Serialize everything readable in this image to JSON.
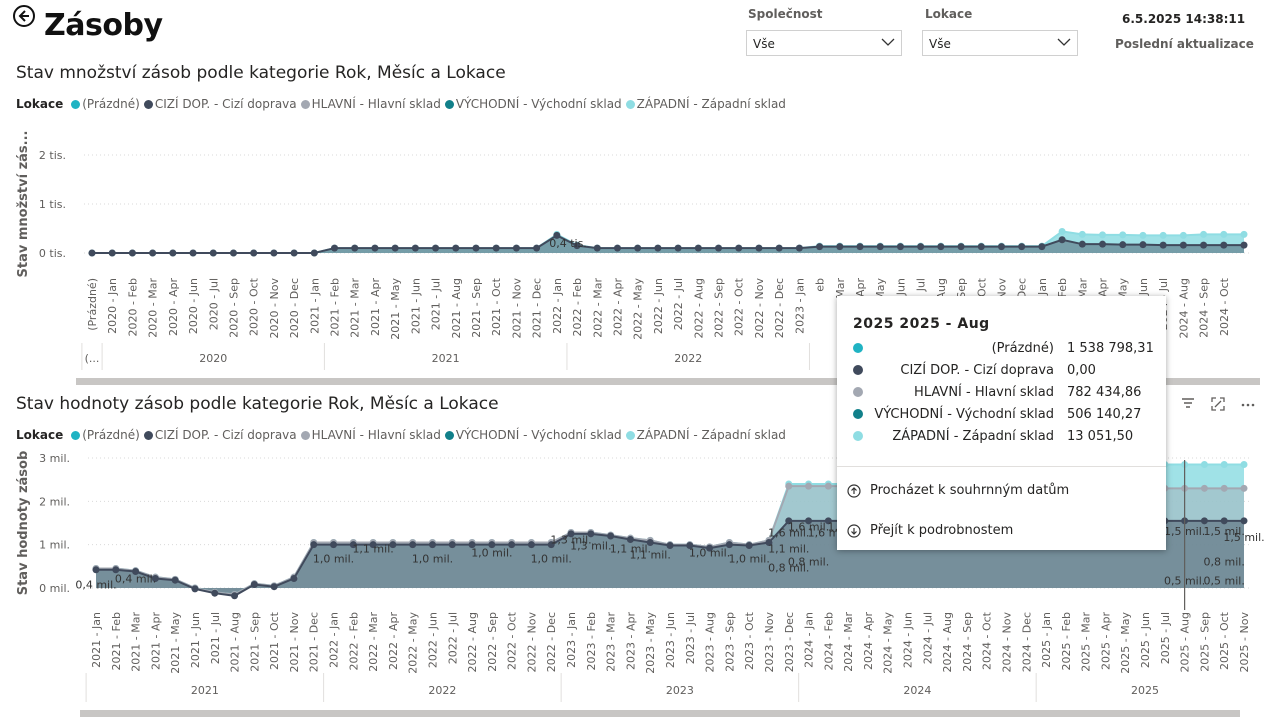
{
  "page": {
    "title": "Zásoby"
  },
  "slicers": [
    {
      "label": "Společnost",
      "value": "Vše"
    },
    {
      "label": "Lokace",
      "value": "Vše"
    }
  ],
  "refresh": {
    "datetime": "6.5.2025 14:38:11",
    "label": "Poslední aktualizace"
  },
  "colors": {
    "prazdne": "#20b3c3",
    "cizi": "#404a5c",
    "hlavni": "#a3a8b2",
    "vychodni": "#11808a",
    "zapadni": "#8fdde3"
  },
  "legend": {
    "title": "Lokace",
    "items": [
      {
        "label": "(Prázdné)",
        "color": "#20b3c3"
      },
      {
        "label": "CIZÍ DOP. - Cizí doprava",
        "color": "#404a5c"
      },
      {
        "label": "HLAVNÍ - Hlavní sklad",
        "color": "#a3a8b2"
      },
      {
        "label": "VÝCHODNÍ - Východní sklad",
        "color": "#11808a"
      },
      {
        "label": "ZÁPADNÍ - Západní sklad",
        "color": "#8fdde3"
      }
    ]
  },
  "chart_data": [
    {
      "type": "area",
      "title": "Stav množství zásob podle kategorie Rok, Měsíc a Lokace",
      "ylabel": "Stav množství zás...",
      "yticks": [
        "0 tis.",
        "1 tis.",
        "2 tis."
      ],
      "ylim": [
        0,
        2000
      ],
      "grid": true,
      "legend_position": "top-left",
      "x": [
        "(Prázdné)",
        "2020 - Jan",
        "2020 - Feb",
        "2020 - Mar",
        "2020 - Apr",
        "2020 - May",
        "2020 - Jun",
        "2020 - Jul",
        "2020 - Sep",
        "2020 - Oct",
        "2020 - Nov",
        "2020 - Dec",
        "2021 - Jan",
        "2021 - Feb",
        "2021 - Mar",
        "2021 - Apr",
        "2021 - May",
        "2021 - Jun",
        "2021 - Jul",
        "2021 - Aug",
        "2021 - Sep",
        "2021 - Oct",
        "2021 - Nov",
        "2021 - Dec",
        "2022 - Jan",
        "2022 - Feb",
        "2022 - Mar",
        "2022 - Apr",
        "2022 - May",
        "2022 - Jun",
        "2022 - Jul",
        "2022 - Aug",
        "2022 - Sep",
        "2022 - Oct",
        "2022 - Nov",
        "2022 - Dec",
        "2023 - Jan",
        "2023 - Feb",
        "2023 - Mar",
        "2023 - Apr",
        "2023 - May",
        "2023 - Jun",
        "2023 - Jul",
        "2023 - Aug",
        "2023 - Sep",
        "2023 - Oct",
        "2023 - Nov",
        "2023 - Dec",
        "2024 - Jan",
        "2024 - Feb",
        "2024 - Mar",
        "2024 - Apr",
        "2024 - May",
        "2024 - Jun",
        "2024 - Jul",
        "2024 - Aug",
        "2024 - Sep",
        "2024 - Oct"
      ],
      "x_visible_labels": [
        "(Prázdné)",
        "2020 - Jan",
        "2020 - Feb",
        "2020 - Mar",
        "2020 - Apr",
        "2020 - Jun",
        "2020 - Jul",
        "2020 - Sep",
        "2020 - Oct",
        "2020 - Nov",
        "2020 - Dec",
        "2021 - Jan",
        "2021 - Feb",
        "2021 - Mar",
        "2021 - Apr",
        "2021 - May",
        "2021 - Jun",
        "2021 - Jul",
        "2021 - Aug",
        "2021 - Sep",
        "2021 - Oct",
        "2021 - Nov",
        "2021 - Dec",
        "2022 - Jan",
        "2022 - Feb",
        "2022 - Mar",
        "2022 - Apr",
        "2022 - May",
        "2022 - Jun",
        "2022 - Jul",
        "2022 - Aug",
        "2022 - Sep",
        "2022 - Oct",
        "2022 - Nov",
        "2022 - Dec",
        "2023 - Jan",
        "eb",
        "Mar",
        "Apr",
        "May",
        "Jun",
        "Jul",
        "Aug",
        "Sep",
        "Oct",
        "Nov",
        "Dec",
        "2024 - Jan",
        "2024 - Feb",
        "2024 - Mar",
        "2024 - Apr",
        "2024 - May",
        "2024 - Jun",
        "2024 - Jul",
        "2024 - Aug",
        "2024 - Sep",
        "2024 - Oct"
      ],
      "year_groups": [
        {
          "label": "(...",
          "count": 1
        },
        {
          "label": "2020",
          "count": 11
        },
        {
          "label": "2021",
          "count": 12
        },
        {
          "label": "2022",
          "count": 12
        },
        {
          "label": "",
          "count": 12
        },
        {
          "label": "",
          "count": 10
        }
      ],
      "series": [
        {
          "name": "ZÁPADNÍ - Západní sklad",
          "color": "#8fdde3",
          "values": [
            0,
            0,
            0,
            0,
            0,
            0,
            0,
            0,
            0,
            0,
            0,
            0,
            100,
            100,
            100,
            100,
            100,
            100,
            100,
            100,
            100,
            100,
            100,
            380,
            160,
            100,
            100,
            100,
            100,
            100,
            100,
            100,
            100,
            100,
            100,
            100,
            140,
            140,
            140,
            140,
            140,
            140,
            140,
            140,
            140,
            140,
            140,
            140,
            440,
            380,
            370,
            370,
            360,
            360,
            360,
            380,
            380,
            380
          ]
        },
        {
          "name": "CIZÍ DOP. - Cizí doprava",
          "color": "#404a5c",
          "values": [
            0,
            0,
            0,
            0,
            0,
            0,
            0,
            0,
            0,
            0,
            0,
            0,
            100,
            100,
            100,
            100,
            100,
            100,
            100,
            100,
            100,
            100,
            100,
            360,
            150,
            100,
            100,
            100,
            100,
            100,
            100,
            100,
            100,
            100,
            100,
            100,
            130,
            130,
            130,
            130,
            130,
            130,
            130,
            130,
            130,
            130,
            130,
            130,
            270,
            180,
            180,
            170,
            170,
            160,
            160,
            160,
            160,
            160
          ]
        }
      ],
      "annotations": [
        "0,4 tis."
      ]
    },
    {
      "type": "area",
      "title": "Stav hodnoty zásob podle kategorie Rok, Měsíc a Lokace",
      "ylabel": "Stav hodnoty zásob",
      "yticks": [
        "0 mil.",
        "1 mil.",
        "2 mil.",
        "3 mil."
      ],
      "ylim": [
        0,
        3
      ],
      "grid": true,
      "legend_position": "top-left",
      "x": [
        "2021 - Jan",
        "2021 - Feb",
        "2021 - Mar",
        "2021 - Apr",
        "2021 - May",
        "2021 - Jun",
        "2021 - Jul",
        "2021 - Aug",
        "2021 - Sep",
        "2021 - Oct",
        "2021 - Nov",
        "2021 - Dec",
        "2022 - Jan",
        "2022 - Feb",
        "2022 - Mar",
        "2022 - Apr",
        "2022 - May",
        "2022 - Jun",
        "2022 - Jul",
        "2022 - Aug",
        "2022 - Sep",
        "2022 - Oct",
        "2022 - Nov",
        "2022 - Dec",
        "2023 - Jan",
        "2023 - Feb",
        "2023 - Mar",
        "2023 - Apr",
        "2023 - May",
        "2023 - Jun",
        "2023 - Jul",
        "2023 - Aug",
        "2023 - Sep",
        "2023 - Oct",
        "2023 - Nov",
        "2023 - Dec",
        "2024 - Jan",
        "2024 - Feb",
        "2024 - Mar",
        "2024 - Apr",
        "2024 - May",
        "2024 - Jun",
        "2024 - Jul",
        "2024 - Aug",
        "2024 - Sep",
        "2024 - Oct",
        "2024 - Nov",
        "2024 - Dec",
        "2025 - Jan",
        "2025 - Feb",
        "2025 - Mar",
        "2025 - Apr",
        "2025 - May",
        "2025 - Jun",
        "2025 - Jul",
        "2025 - Aug",
        "2025 - Sep",
        "2025 - Oct",
        "2025 - Nov"
      ],
      "year_groups": [
        {
          "label": "2021",
          "count": 12
        },
        {
          "label": "2022",
          "count": 12
        },
        {
          "label": "2023",
          "count": 12
        },
        {
          "label": "2024",
          "count": 12
        },
        {
          "label": "2025",
          "count": 11
        }
      ],
      "series": [
        {
          "name": "ZÁPADNÍ - Západní sklad",
          "color": "#8fdde3",
          "values": [
            0.45,
            0.45,
            0.4,
            0.25,
            0.2,
            0.0,
            -0.1,
            -0.15,
            0.1,
            0.05,
            0.25,
            1.05,
            1.05,
            1.05,
            1.05,
            1.05,
            1.05,
            1.05,
            1.05,
            1.05,
            1.05,
            1.05,
            1.05,
            1.05,
            1.28,
            1.28,
            1.22,
            1.15,
            1.1,
            1.0,
            1.0,
            0.95,
            1.05,
            1.0,
            1.1,
            2.4,
            2.4,
            2.4,
            2.4,
            2.4,
            2.4,
            2.4,
            2.4,
            2.4,
            2.4,
            2.4,
            2.4,
            2.4,
            2.85,
            2.85,
            2.85,
            2.85,
            2.85,
            2.85,
            2.85,
            2.85,
            2.85,
            2.85,
            2.85
          ]
        },
        {
          "name": "HLAVNÍ - Hlavní sklad",
          "color": "#a3a8b2",
          "values": [
            0.45,
            0.45,
            0.4,
            0.25,
            0.2,
            0.0,
            -0.1,
            -0.15,
            0.1,
            0.05,
            0.25,
            1.05,
            1.05,
            1.05,
            1.05,
            1.05,
            1.05,
            1.05,
            1.05,
            1.05,
            1.05,
            1.05,
            1.05,
            1.05,
            1.28,
            1.28,
            1.22,
            1.15,
            1.1,
            1.0,
            1.0,
            0.95,
            1.05,
            1.0,
            1.1,
            2.35,
            2.35,
            2.35,
            2.35,
            2.35,
            2.35,
            2.35,
            2.35,
            2.35,
            2.35,
            2.35,
            2.35,
            2.35,
            2.3,
            2.3,
            2.3,
            2.3,
            2.3,
            2.3,
            2.3,
            2.3,
            2.3,
            2.3,
            2.3
          ]
        },
        {
          "name": "CIZÍ DOP. - Cizí doprava",
          "color": "#404a5c",
          "values": [
            0.42,
            0.42,
            0.38,
            0.22,
            0.18,
            -0.02,
            -0.12,
            -0.18,
            0.08,
            0.03,
            0.22,
            1.0,
            1.0,
            1.0,
            1.0,
            1.0,
            1.0,
            1.0,
            1.0,
            1.0,
            1.0,
            1.0,
            1.0,
            1.0,
            1.25,
            1.25,
            1.2,
            1.12,
            1.05,
            0.98,
            0.98,
            0.92,
            1.0,
            0.98,
            1.05,
            1.55,
            1.55,
            1.55,
            1.55,
            1.55,
            1.55,
            1.55,
            1.55,
            1.55,
            1.55,
            1.55,
            1.55,
            1.55,
            1.55,
            1.55,
            1.55,
            1.55,
            1.55,
            1.55,
            1.55,
            1.55,
            1.55,
            1.55,
            1.55
          ]
        }
      ],
      "data_labels": [
        {
          "text": "0,4 mil.",
          "i": 0
        },
        {
          "text": "0,4 mil.",
          "i": 2
        },
        {
          "text": "1,0 mil.",
          "i": 12
        },
        {
          "text": "1,1 mil.",
          "i": 14
        },
        {
          "text": "1,0 mil.",
          "i": 17
        },
        {
          "text": "1,0 mil.",
          "i": 20
        },
        {
          "text": "1,0 mil.",
          "i": 23
        },
        {
          "text": "1,3 mil.",
          "i": 24
        },
        {
          "text": "1,3 mil.",
          "i": 25
        },
        {
          "text": "1,1 mil.",
          "i": 27
        },
        {
          "text": "1,1 mil.",
          "i": 28
        },
        {
          "text": "1,0 mil.",
          "i": 31
        },
        {
          "text": "1,0 mil.",
          "i": 33
        },
        {
          "text": "1,1 mil.",
          "i": 35
        },
        {
          "text": "1,6 mil.",
          "i": 35
        },
        {
          "text": "1,6 mil.",
          "i": 36
        },
        {
          "text": "1,6 mil.",
          "i": 37
        },
        {
          "text": "1,6 mil.",
          "i": 38
        },
        {
          "text": "1,6 mil.",
          "i": 39
        },
        {
          "text": "1,6 mil.",
          "i": 40
        },
        {
          "text": "1,5 mil.",
          "i": 41
        },
        {
          "text": "1,5 mil.",
          "i": 42
        },
        {
          "text": "1,5 mil.",
          "i": 43
        },
        {
          "text": "1,5 mil.",
          "i": 44
        },
        {
          "text": "1,5 mil.",
          "i": 46
        },
        {
          "text": "1,5 mil.",
          "i": 49
        },
        {
          "text": "1,5 mil.",
          "i": 52
        },
        {
          "text": "1,5 mil.",
          "i": 55
        },
        {
          "text": "1,5 mil.",
          "i": 58
        },
        {
          "text": "1,5 mil.",
          "i": 57
        },
        {
          "text": "0,8 mil.",
          "i": 35
        },
        {
          "text": "0,8 mil.",
          "i": 36
        },
        {
          "text": "0,5 mil.",
          "i": 55
        },
        {
          "text": "0,8 mil.",
          "i": 57
        },
        {
          "text": "0,5 mil.",
          "i": 57
        }
      ]
    }
  ],
  "tooltip": {
    "title": "2025 2025 - Aug",
    "rows": [
      {
        "name": "(Prázdné)",
        "value": "1 538 798,31",
        "color": "#20b3c3"
      },
      {
        "name": "CIZÍ DOP. - Cizí doprava",
        "value": "0,00",
        "color": "#404a5c"
      },
      {
        "name": "HLAVNÍ - Hlavní sklad",
        "value": "782 434,86",
        "color": "#a3a8b2"
      },
      {
        "name": "VÝCHODNÍ - Východní sklad",
        "value": "506 140,27",
        "color": "#11808a"
      },
      {
        "name": "ZÁPADNÍ - Západní sklad",
        "value": "13 051,50",
        "color": "#8fdde3"
      }
    ],
    "actions": [
      "Procházet k souhrnným datům",
      "Přejít k podrobnostem"
    ]
  }
}
